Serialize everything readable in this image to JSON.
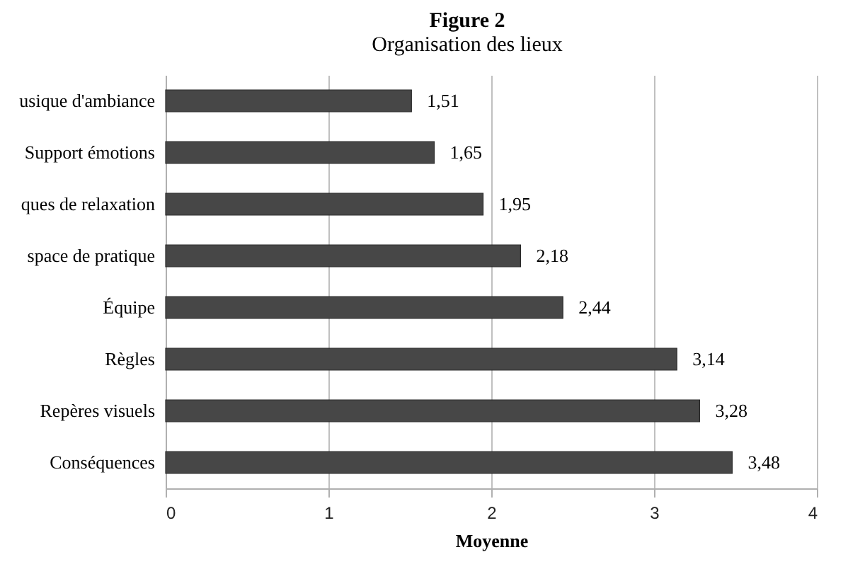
{
  "chart_data": {
    "type": "bar",
    "orientation": "horizontal",
    "title": "Figure 2",
    "subtitle": "Organisation des lieux",
    "xlabel": "Moyenne",
    "categories": [
      "usique d'ambiance",
      "Support émotions",
      "ques de relaxation",
      "space de pratique",
      "Équipe",
      "Règles",
      "Repères visuels",
      "Conséquences"
    ],
    "values": [
      1.51,
      1.65,
      1.95,
      2.18,
      2.44,
      3.14,
      3.28,
      3.48
    ],
    "value_labels": [
      "1,51",
      "1,65",
      "1,95",
      "2,18",
      "2,44",
      "3,14",
      "3,28",
      "3,48"
    ],
    "color": "#474747",
    "xlim": [
      0,
      4
    ],
    "xticks": [
      0,
      1,
      2,
      3,
      4
    ],
    "grid": "x"
  }
}
